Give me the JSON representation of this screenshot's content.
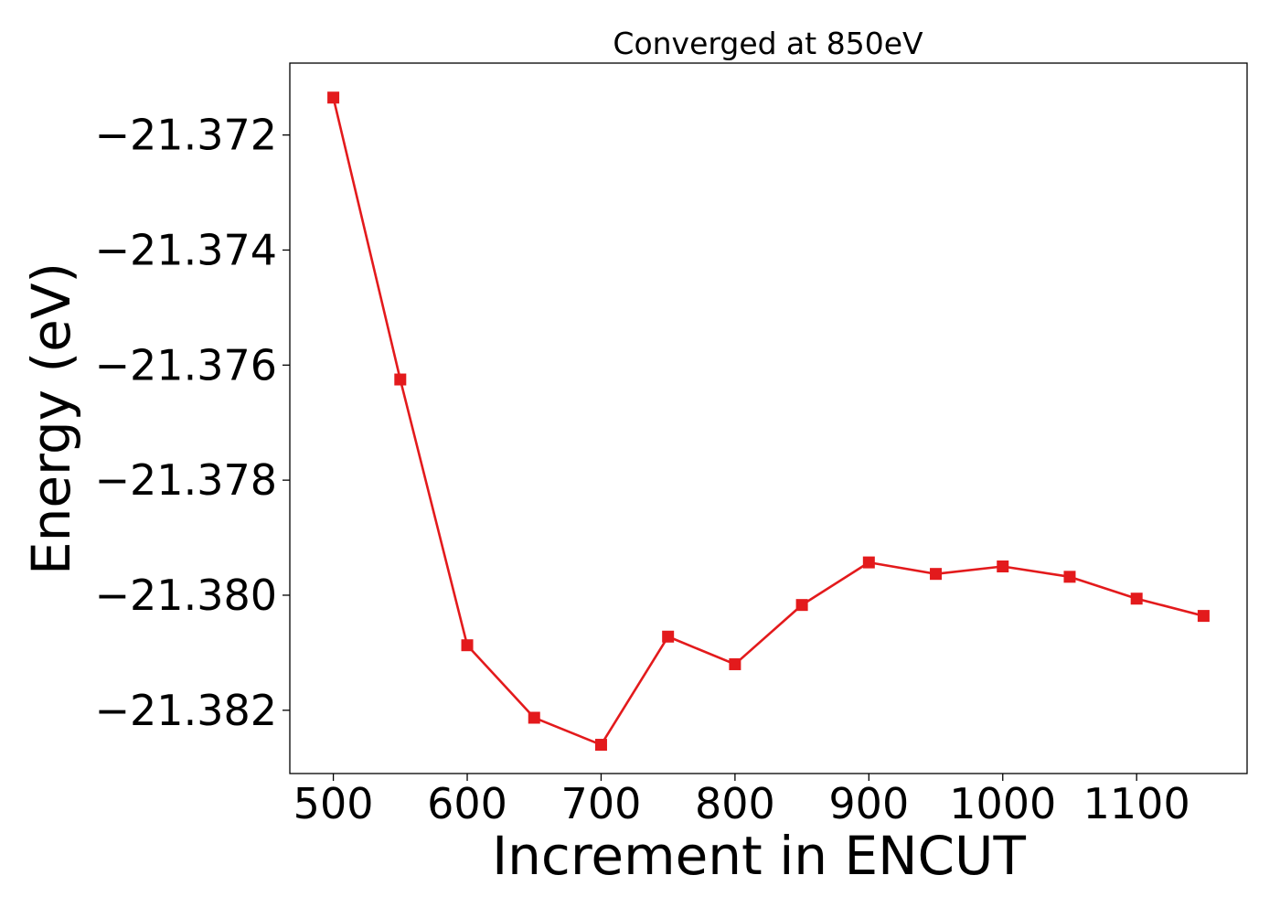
{
  "chart_data": {
    "type": "line",
    "title": "Converged at 850eV",
    "xlabel": "Increment in ENCUT",
    "ylabel": "Energy (eV)",
    "x": [
      500,
      550,
      600,
      650,
      700,
      750,
      800,
      850,
      900,
      950,
      1000,
      1050,
      1100,
      1150
    ],
    "series": [
      {
        "values": [
          -21.37135,
          -21.37625,
          -21.38087,
          -21.38213,
          -21.3826,
          -21.38072,
          -21.3812,
          -21.38017,
          -21.37943,
          -21.37963,
          -21.3795,
          -21.37968,
          -21.38006,
          -21.38036
        ],
        "color": "#e31a1c",
        "marker": "square"
      }
    ],
    "xlim": [
      467.5,
      1182.5
    ],
    "ylim": [
      -21.3831,
      -21.37075
    ],
    "xticks": [
      500,
      600,
      700,
      800,
      900,
      1000,
      1100
    ],
    "xtick_labels": [
      "500",
      "600",
      "700",
      "800",
      "900",
      "1000",
      "1100"
    ],
    "yticks": [
      -21.382,
      -21.38,
      -21.378,
      -21.376,
      -21.374,
      -21.372
    ],
    "ytick_labels": [
      "−21.382",
      "−21.380",
      "−21.378",
      "−21.376",
      "−21.374",
      "−21.372"
    ],
    "grid": false,
    "legend": "none"
  }
}
